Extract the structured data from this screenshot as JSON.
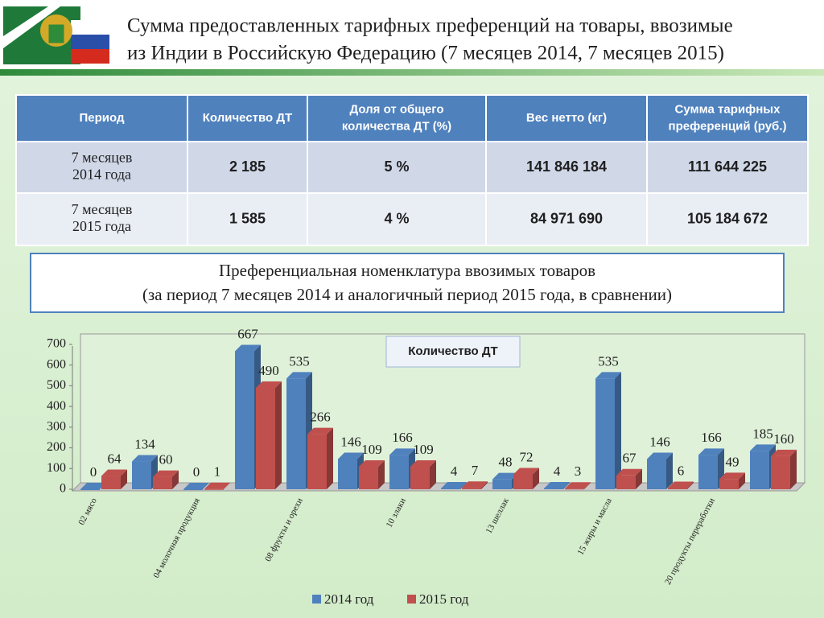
{
  "header": {
    "title_line1": "Сумма предоставленных тарифных преференций на товары, ввозимые",
    "title_line2": "из Индии в Российскую Федерацию (7 месяцев 2014, 7 месяцев 2015)"
  },
  "table": {
    "header": [
      "Период",
      "Количество ДТ",
      "Доля от общего количества ДТ (%)",
      "Вес нетто (кг)",
      "Сумма тарифных преференций (руб.)"
    ],
    "rows": [
      [
        "7 месяцев 2014 года",
        "2 185",
        "5 %",
        "141 846 184",
        "111 644 225"
      ],
      [
        "7 месяцев 2015 года",
        "1 585",
        "4 %",
        "84 971 690",
        "105 184 672"
      ]
    ]
  },
  "panel": {
    "line1": "Преференциальная номенклатура ввозимых товаров",
    "line2": "(за период 7 месяцев 2014 и аналогичный период 2015 года, в сравнении)"
  },
  "chart_data": {
    "type": "bar3d",
    "title": "Количество ДТ",
    "categories": [
      "02 мясо",
      null,
      "04 молочная продукция",
      null,
      "08 фрукты и орехи",
      null,
      "10 злаки",
      null,
      "13 шеллак",
      null,
      "15 жиры и масла",
      null,
      "20 продукты переработки",
      null
    ],
    "series": [
      {
        "name": "2014 год",
        "color": "#4f81bd",
        "values": [
          0,
          134,
          0,
          667,
          535,
          146,
          166,
          4,
          48,
          4,
          535,
          146,
          166,
          185
        ]
      },
      {
        "name": "2015 год",
        "color": "#c0504d",
        "values": [
          64,
          60,
          1,
          490,
          266,
          109,
          109,
          7,
          72,
          3,
          67,
          6,
          49,
          160
        ]
      }
    ],
    "ylim": [
      0,
      700
    ],
    "yticks": [
      0,
      100,
      200,
      300,
      400,
      500,
      600,
      700
    ],
    "legend": "bottom"
  }
}
